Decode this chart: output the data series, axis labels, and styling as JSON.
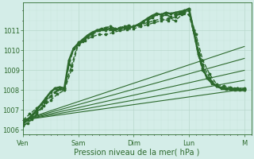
{
  "background_color": "#d4ede8",
  "grid_color_major": "#b8d8cc",
  "grid_color_minor": "#c8e4da",
  "line_color": "#2d6a2d",
  "xlabel": "Pression niveau de la mer( hPa )",
  "ylim": [
    1005.8,
    1012.4
  ],
  "xlim": [
    0,
    198
  ],
  "day_labels": [
    "Ven",
    "Sam",
    "Dim",
    "Lun",
    "M"
  ],
  "day_positions": [
    0,
    48,
    96,
    144,
    192
  ],
  "yticks": [
    1006,
    1007,
    1008,
    1009,
    1010,
    1011
  ],
  "series": [
    {
      "x": [
        0,
        192
      ],
      "y": [
        1006.5,
        1008.05
      ],
      "marker": null,
      "lw": 0.8,
      "dashed": false,
      "ms": 0
    },
    {
      "x": [
        0,
        192
      ],
      "y": [
        1006.5,
        1008.5
      ],
      "marker": null,
      "lw": 0.8,
      "dashed": false,
      "ms": 0
    },
    {
      "x": [
        0,
        192
      ],
      "y": [
        1006.5,
        1009.0
      ],
      "marker": null,
      "lw": 0.8,
      "dashed": false,
      "ms": 0
    },
    {
      "x": [
        0,
        192
      ],
      "y": [
        1006.5,
        1009.6
      ],
      "marker": null,
      "lw": 0.8,
      "dashed": false,
      "ms": 0
    },
    {
      "x": [
        0,
        192
      ],
      "y": [
        1006.5,
        1010.2
      ],
      "marker": null,
      "lw": 0.8,
      "dashed": false,
      "ms": 0
    },
    {
      "x": [
        0,
        6,
        12,
        18,
        24,
        30,
        36,
        42,
        48,
        54,
        60,
        66,
        72,
        78,
        84,
        90,
        96,
        102,
        108,
        114,
        120,
        126,
        132,
        138,
        144,
        150,
        156,
        162,
        168,
        174,
        180,
        186,
        192
      ],
      "y": [
        1006.4,
        1006.6,
        1006.9,
        1007.2,
        1007.5,
        1007.8,
        1008.0,
        1009.0,
        1010.3,
        1010.5,
        1010.7,
        1010.8,
        1010.8,
        1010.9,
        1011.0,
        1011.05,
        1011.1,
        1011.2,
        1011.3,
        1011.4,
        1011.5,
        1011.6,
        1011.5,
        1011.8,
        1011.8,
        1010.5,
        1009.3,
        1008.6,
        1008.2,
        1008.1,
        1008.1,
        1008.1,
        1008.05
      ],
      "marker": "*",
      "lw": 1.0,
      "dashed": true,
      "ms": 2.5
    },
    {
      "x": [
        0,
        6,
        12,
        18,
        24,
        30,
        36,
        42,
        48,
        54,
        60,
        66,
        72,
        78,
        84,
        90,
        96,
        102,
        108,
        114,
        120,
        126,
        132,
        138,
        144,
        150,
        156,
        162,
        168,
        174,
        180,
        186,
        192
      ],
      "y": [
        1006.5,
        1006.8,
        1007.1,
        1007.4,
        1007.7,
        1008.0,
        1008.1,
        1009.2,
        1010.4,
        1010.6,
        1010.8,
        1011.0,
        1011.0,
        1011.0,
        1011.1,
        1011.15,
        1011.2,
        1011.3,
        1011.4,
        1011.5,
        1011.6,
        1011.5,
        1011.7,
        1011.9,
        1012.0,
        1010.8,
        1009.5,
        1008.8,
        1008.3,
        1008.2,
        1008.15,
        1008.1,
        1008.1
      ],
      "marker": "*",
      "lw": 1.0,
      "dashed": true,
      "ms": 2.5
    },
    {
      "x": [
        0,
        4,
        8,
        12,
        16,
        20,
        24,
        28,
        32,
        36,
        40,
        44,
        48,
        52,
        56,
        60,
        64,
        68,
        72,
        76,
        80,
        84,
        88,
        92,
        96,
        100,
        104,
        108,
        112,
        116,
        120,
        124,
        128,
        132,
        136,
        140,
        144,
        148,
        152,
        156,
        160,
        164,
        168,
        172,
        176,
        180,
        184,
        188,
        192
      ],
      "y": [
        1006.2,
        1006.35,
        1006.55,
        1006.8,
        1007.1,
        1007.4,
        1007.7,
        1007.9,
        1008.05,
        1008.0,
        1009.3,
        1010.1,
        1010.3,
        1010.45,
        1010.7,
        1010.85,
        1011.0,
        1011.1,
        1011.15,
        1011.2,
        1011.1,
        1011.15,
        1011.2,
        1011.25,
        1011.2,
        1011.3,
        1011.4,
        1011.5,
        1011.65,
        1011.8,
        1011.7,
        1011.8,
        1011.7,
        1011.8,
        1011.85,
        1011.9,
        1012.05,
        1011.0,
        1009.8,
        1009.0,
        1008.6,
        1008.4,
        1008.2,
        1008.15,
        1008.1,
        1008.1,
        1008.05,
        1008.05,
        1008.0
      ],
      "marker": "*",
      "lw": 1.3,
      "dashed": true,
      "ms": 2.5
    },
    {
      "x": [
        0,
        4,
        8,
        12,
        16,
        20,
        24,
        28,
        32,
        36,
        40,
        44,
        48,
        52,
        56,
        60,
        64,
        68,
        72,
        76,
        80,
        84,
        88,
        92,
        96,
        100,
        104,
        108,
        112,
        116,
        120,
        124,
        128,
        132,
        136,
        140,
        144,
        148,
        152,
        156,
        160,
        164,
        168,
        172,
        176,
        180,
        184,
        188,
        192
      ],
      "y": [
        1006.3,
        1006.5,
        1006.75,
        1007.0,
        1007.3,
        1007.6,
        1007.9,
        1008.1,
        1008.15,
        1008.1,
        1009.5,
        1010.1,
        1010.35,
        1010.55,
        1010.75,
        1010.9,
        1011.0,
        1011.05,
        1011.05,
        1011.1,
        1011.05,
        1011.1,
        1011.15,
        1011.15,
        1011.2,
        1011.3,
        1011.45,
        1011.6,
        1011.75,
        1011.85,
        1011.8,
        1011.9,
        1011.85,
        1011.9,
        1011.95,
        1012.0,
        1012.1,
        1011.0,
        1009.9,
        1009.1,
        1008.6,
        1008.35,
        1008.2,
        1008.1,
        1008.05,
        1008.05,
        1008.0,
        1008.0,
        1008.0
      ],
      "marker": "*",
      "lw": 1.8,
      "dashed": false,
      "ms": 2.5
    }
  ]
}
